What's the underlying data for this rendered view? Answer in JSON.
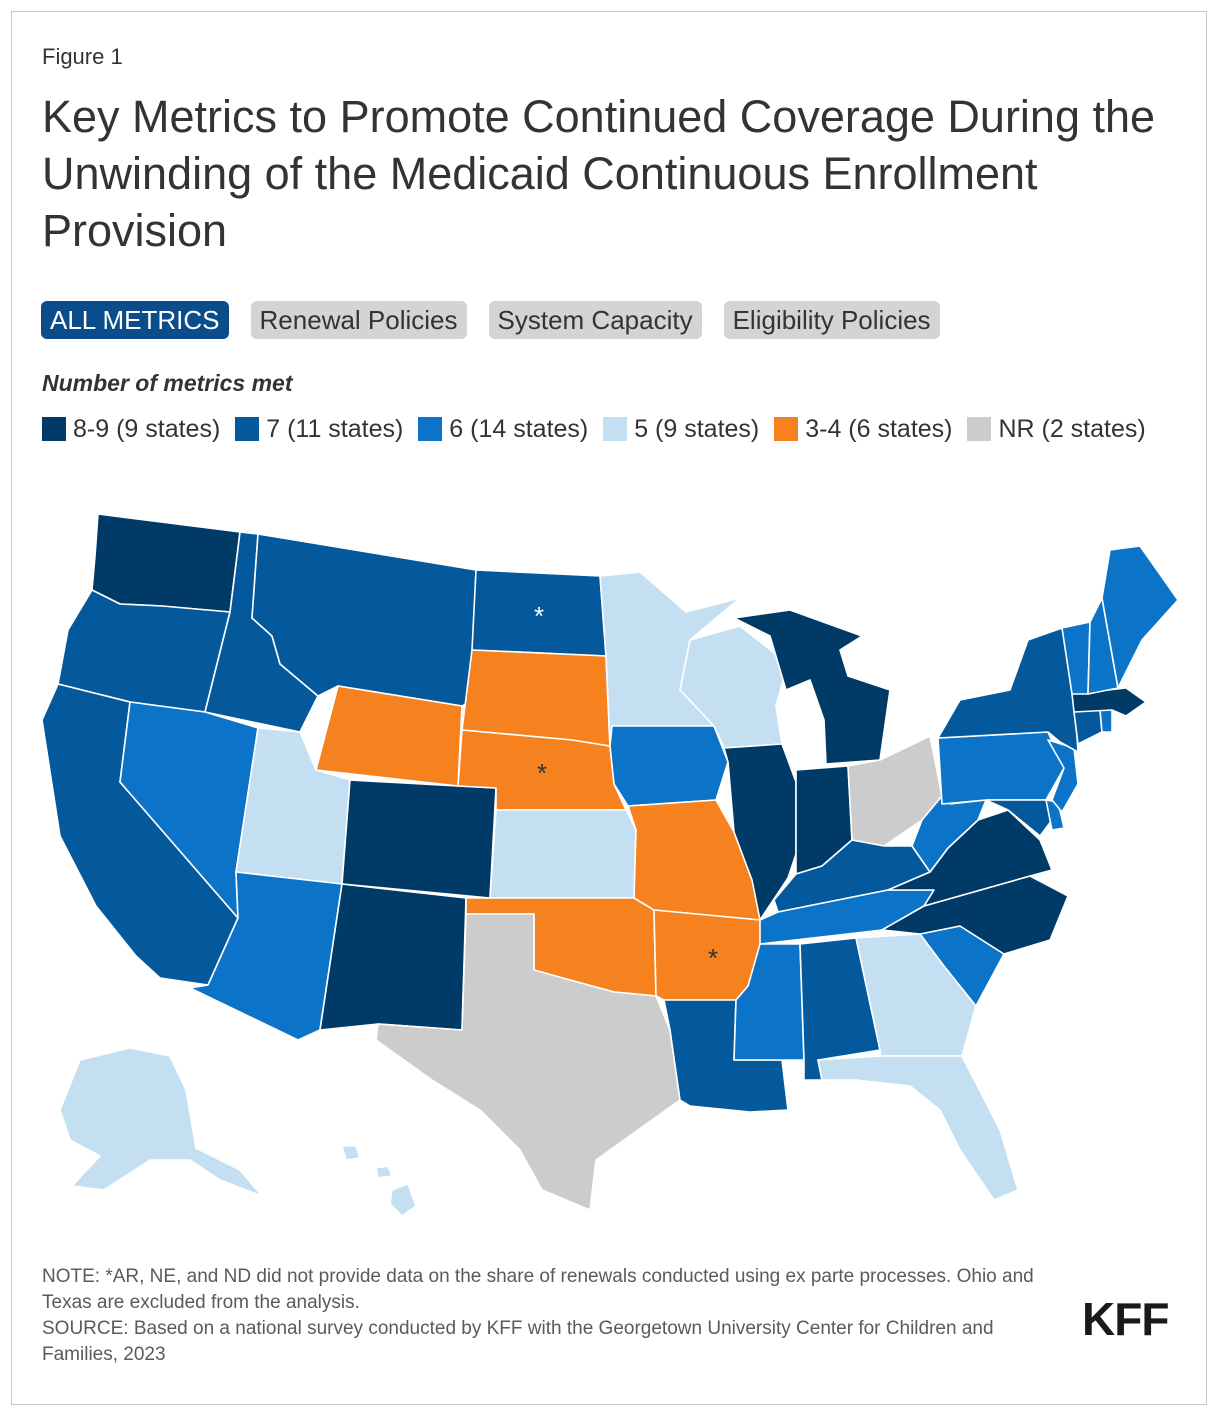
{
  "figure_label": "Figure 1",
  "title": "Key Metrics to Promote Continued Coverage During the Unwinding of the Medicaid Continuous Enrollment Provision",
  "tabs": [
    {
      "label": "ALL METRICS",
      "active": true
    },
    {
      "label": "Renewal Policies",
      "active": false
    },
    {
      "label": "System Capacity",
      "active": false
    },
    {
      "label": "Eligibility Policies",
      "active": false
    }
  ],
  "legend": {
    "title": "Number of metrics met",
    "items": [
      {
        "label": "8-9 (9 states)",
        "color": "#003a66"
      },
      {
        "label": "7 (11 states)",
        "color": "#03599c"
      },
      {
        "label": "6 (14 states)",
        "color": "#0b74c8"
      },
      {
        "label": "5 (9 states)",
        "color": "#c4dff1"
      },
      {
        "label": "3-4 (6 states)",
        "color": "#f5821f"
      },
      {
        "label": "NR (2 states)",
        "color": "#cccccc"
      }
    ]
  },
  "asterisk": "*",
  "map": {
    "states": [
      {
        "name": "WA",
        "category": 0,
        "asterisk": false
      },
      {
        "name": "OR",
        "category": 1,
        "asterisk": false
      },
      {
        "name": "CA",
        "category": 1,
        "asterisk": false
      },
      {
        "name": "ID",
        "category": 1,
        "asterisk": false
      },
      {
        "name": "NV",
        "category": 2,
        "asterisk": false
      },
      {
        "name": "MT",
        "category": 1,
        "asterisk": false
      },
      {
        "name": "WY",
        "category": 4,
        "asterisk": false
      },
      {
        "name": "UT",
        "category": 3,
        "asterisk": false
      },
      {
        "name": "AZ",
        "category": 2,
        "asterisk": false
      },
      {
        "name": "CO",
        "category": 0,
        "asterisk": false
      },
      {
        "name": "NM",
        "category": 0,
        "asterisk": false
      },
      {
        "name": "ND",
        "category": 1,
        "asterisk": true
      },
      {
        "name": "SD",
        "category": 4,
        "asterisk": false
      },
      {
        "name": "NE",
        "category": 4,
        "asterisk": true
      },
      {
        "name": "KS",
        "category": 3,
        "asterisk": false
      },
      {
        "name": "OK",
        "category": 4,
        "asterisk": false
      },
      {
        "name": "TX",
        "category": 5,
        "asterisk": false
      },
      {
        "name": "MN",
        "category": 3,
        "asterisk": false
      },
      {
        "name": "IA",
        "category": 2,
        "asterisk": false
      },
      {
        "name": "MO",
        "category": 4,
        "asterisk": false
      },
      {
        "name": "AR",
        "category": 4,
        "asterisk": true
      },
      {
        "name": "LA",
        "category": 1,
        "asterisk": false
      },
      {
        "name": "WI",
        "category": 3,
        "asterisk": false
      },
      {
        "name": "IL",
        "category": 0,
        "asterisk": false
      },
      {
        "name": "MI",
        "category": 0,
        "asterisk": false
      },
      {
        "name": "IN",
        "category": 0,
        "asterisk": false
      },
      {
        "name": "OH",
        "category": 5,
        "asterisk": false
      },
      {
        "name": "KY",
        "category": 1,
        "asterisk": false
      },
      {
        "name": "TN",
        "category": 2,
        "asterisk": false
      },
      {
        "name": "MS",
        "category": 2,
        "asterisk": false
      },
      {
        "name": "AL",
        "category": 1,
        "asterisk": false
      },
      {
        "name": "GA",
        "category": 3,
        "asterisk": false
      },
      {
        "name": "FL",
        "category": 3,
        "asterisk": false
      },
      {
        "name": "SC",
        "category": 2,
        "asterisk": false
      },
      {
        "name": "NC",
        "category": 0,
        "asterisk": false
      },
      {
        "name": "VA",
        "category": 0,
        "asterisk": false
      },
      {
        "name": "WV",
        "category": 2,
        "asterisk": false
      },
      {
        "name": "PA",
        "category": 2,
        "asterisk": false
      },
      {
        "name": "NY",
        "category": 1,
        "asterisk": false
      },
      {
        "name": "MD",
        "category": 1,
        "asterisk": false
      },
      {
        "name": "DE",
        "category": 2,
        "asterisk": false
      },
      {
        "name": "NJ",
        "category": 2,
        "asterisk": false
      },
      {
        "name": "CT",
        "category": 1,
        "asterisk": false
      },
      {
        "name": "RI",
        "category": 2,
        "asterisk": false
      },
      {
        "name": "MA",
        "category": 0,
        "asterisk": false
      },
      {
        "name": "VT",
        "category": 2,
        "asterisk": false
      },
      {
        "name": "NH",
        "category": 2,
        "asterisk": false
      },
      {
        "name": "ME",
        "category": 2,
        "asterisk": false
      },
      {
        "name": "AK",
        "category": 3,
        "asterisk": false
      },
      {
        "name": "HI",
        "category": 3,
        "asterisk": false
      }
    ]
  },
  "note": "NOTE: *AR, NE, and ND did not provide data on the share of renewals conducted using ex parte processes. Ohio and Texas are excluded from the analysis.",
  "source": "SOURCE: Based on a national survey conducted by KFF with the Georgetown University Center for Children and Families, 2023",
  "logo": "KFF"
}
